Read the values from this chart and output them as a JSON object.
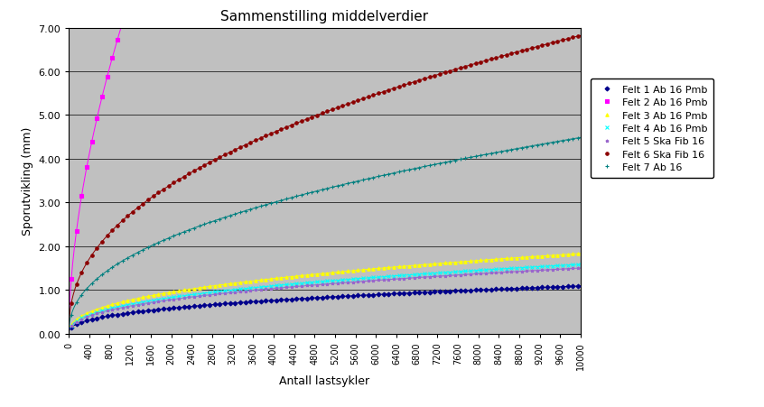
{
  "title": "Sammenstilling middelverdier",
  "xlabel": "Antall lastsykler",
  "ylabel": "Sporutvikling (mm)",
  "xlim": [
    0,
    10000
  ],
  "ylim": [
    0.0,
    7.0
  ],
  "xticks": [
    0,
    400,
    800,
    1200,
    1600,
    2000,
    2400,
    2800,
    3200,
    3600,
    4000,
    4400,
    4800,
    5200,
    5600,
    6000,
    6400,
    6800,
    7200,
    7600,
    8000,
    8400,
    8800,
    9200,
    9600,
    10000
  ],
  "ytick_labels": [
    "0.00",
    "1.00",
    "2.00",
    "3.00",
    "4.00",
    "5.00",
    "6.00",
    "7.00"
  ],
  "ytick_vals": [
    0.0,
    1.0,
    2.0,
    3.0,
    4.0,
    5.0,
    6.0,
    7.0
  ],
  "background_color": "#c0c0c0",
  "series": [
    {
      "label": "Felt 1 Ab 16 Pmb",
      "color": "#00008B",
      "marker": "D",
      "a": 0.03,
      "b": 0.39
    },
    {
      "label": "Felt 2 Ab 16 Pmb",
      "color": "#FF00FF",
      "marker": "s",
      "a": 0.135,
      "b": 0.57
    },
    {
      "label": "Felt 3 Ab 16 Pmb",
      "color": "#FFFF00",
      "marker": "^",
      "a": 0.042,
      "b": 0.41
    },
    {
      "label": "Felt 4 Ab 16 Pmb",
      "color": "#00FFFF",
      "marker": "x",
      "a": 0.038,
      "b": 0.405
    },
    {
      "label": "Felt 5 Ska Fib 16",
      "color": "#9966CC",
      "marker": "*",
      "a": 0.035,
      "b": 0.408
    },
    {
      "label": "Felt 6 Ska Fib 16",
      "color": "#8B0000",
      "marker": "o",
      "a": 0.13,
      "b": 0.43
    },
    {
      "label": "Felt 7 Ab 16",
      "color": "#008080",
      "marker": "+",
      "a": 0.078,
      "b": 0.44
    }
  ]
}
